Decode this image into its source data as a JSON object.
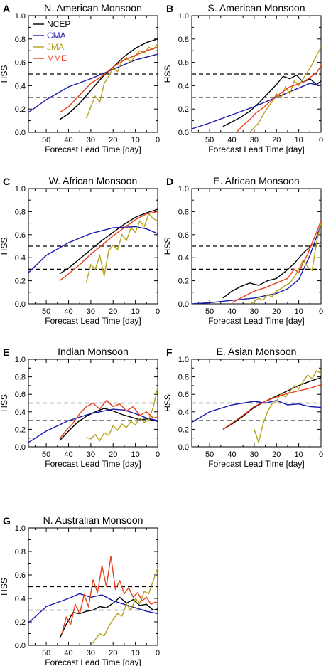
{
  "colors": {
    "NCEP": "#000000",
    "CMA": "#1a1aaa",
    "JMA": "#b5a21a",
    "MME": "#e8401a",
    "axis": "#000000"
  },
  "legend": [
    {
      "name": "NCEP",
      "color": "#000000"
    },
    {
      "name": "CMA",
      "color": "#1a1aaa"
    },
    {
      "name": "JMA",
      "color": "#b5a21a"
    },
    {
      "name": "MME",
      "color": "#e8401a"
    }
  ],
  "chart_data": [
    {
      "type": "line",
      "panel_label": "A",
      "title": "N. American Monsoon",
      "xlabel": "Forecast Lead Time [day]",
      "ylabel": "HSS",
      "xlim": [
        58,
        0
      ],
      "ylim": [
        0,
        1.0
      ],
      "x_ticks": [
        50,
        40,
        30,
        20,
        10,
        0
      ],
      "y_ticks": [
        "0.0",
        "0.2",
        "0.4",
        "0.6",
        "0.8",
        "1.0"
      ],
      "hlines": [
        0.3,
        0.5
      ],
      "legend_placement": "top-left",
      "series": [
        {
          "name": "NCEP",
          "x": [
            44,
            40,
            35,
            30,
            25,
            20,
            15,
            10,
            5,
            0
          ],
          "values": [
            0.11,
            0.16,
            0.25,
            0.36,
            0.47,
            0.56,
            0.65,
            0.72,
            0.77,
            0.8
          ]
        },
        {
          "name": "CMA",
          "x": [
            58,
            50,
            40,
            30,
            20,
            10,
            0
          ],
          "values": [
            0.17,
            0.28,
            0.39,
            0.46,
            0.54,
            0.62,
            0.67
          ]
        },
        {
          "name": "JMA",
          "x": [
            32,
            30,
            28,
            26,
            24,
            22,
            20,
            18,
            16,
            14,
            12,
            10,
            8,
            6,
            4,
            2,
            0
          ],
          "values": [
            0.12,
            0.22,
            0.31,
            0.26,
            0.42,
            0.48,
            0.55,
            0.52,
            0.61,
            0.64,
            0.6,
            0.66,
            0.7,
            0.68,
            0.73,
            0.71,
            0.76
          ]
        },
        {
          "name": "MME",
          "x": [
            44,
            40,
            35,
            30,
            25,
            20,
            15,
            10,
            5,
            0
          ],
          "values": [
            0.17,
            0.22,
            0.32,
            0.42,
            0.48,
            0.56,
            0.62,
            0.66,
            0.7,
            0.73
          ]
        }
      ]
    },
    {
      "type": "line",
      "panel_label": "B",
      "title": "S. American Monsoon",
      "xlabel": "Forecast Lead Time [day]",
      "ylabel": "HSS",
      "xlim": [
        58,
        0
      ],
      "ylim": [
        0,
        1.0
      ],
      "x_ticks": [
        50,
        40,
        30,
        20,
        10,
        0
      ],
      "y_ticks": [
        "0.0",
        "0.2",
        "0.4",
        "0.6",
        "0.8",
        "1.0"
      ],
      "hlines": [
        0.3,
        0.5
      ],
      "series": [
        {
          "name": "NCEP",
          "x": [
            44,
            40,
            36,
            32,
            28,
            24,
            20,
            17,
            14,
            11,
            8,
            5,
            2,
            0
          ],
          "values": [
            0.05,
            0.09,
            0.13,
            0.18,
            0.25,
            0.33,
            0.41,
            0.48,
            0.46,
            0.49,
            0.43,
            0.46,
            0.41,
            0.44
          ]
        },
        {
          "name": "CMA",
          "x": [
            58,
            50,
            40,
            30,
            20,
            10,
            5,
            0
          ],
          "values": [
            0.03,
            0.08,
            0.15,
            0.22,
            0.3,
            0.38,
            0.42,
            0.4
          ]
        },
        {
          "name": "JMA",
          "x": [
            32,
            30,
            28,
            26,
            24,
            22,
            20,
            18,
            16,
            14,
            12,
            10,
            8,
            6,
            4,
            2,
            0
          ],
          "values": [
            0.0,
            0.04,
            0.08,
            0.15,
            0.21,
            0.26,
            0.33,
            0.29,
            0.39,
            0.33,
            0.44,
            0.4,
            0.46,
            0.52,
            0.58,
            0.66,
            0.73
          ]
        },
        {
          "name": "MME",
          "x": [
            38,
            35,
            32,
            29,
            26,
            23,
            20,
            17,
            14,
            11,
            8,
            5,
            2,
            0
          ],
          "values": [
            0.0,
            0.06,
            0.11,
            0.17,
            0.21,
            0.26,
            0.31,
            0.35,
            0.39,
            0.41,
            0.43,
            0.47,
            0.51,
            0.57
          ]
        }
      ]
    },
    {
      "type": "line",
      "panel_label": "C",
      "title": "W. African Monsoon",
      "xlabel": "Forecast Lead Time [day]",
      "ylabel": "HSS",
      "xlim": [
        58,
        0
      ],
      "ylim": [
        0,
        1.0
      ],
      "x_ticks": [
        50,
        40,
        30,
        20,
        10,
        0
      ],
      "y_ticks": [
        "0.0",
        "0.2",
        "0.4",
        "0.6",
        "0.8",
        "1.0"
      ],
      "hlines": [
        0.3,
        0.5
      ],
      "series": [
        {
          "name": "NCEP",
          "x": [
            44,
            40,
            35,
            30,
            25,
            20,
            15,
            10,
            5,
            0
          ],
          "values": [
            0.26,
            0.31,
            0.39,
            0.47,
            0.55,
            0.62,
            0.69,
            0.75,
            0.79,
            0.82
          ]
        },
        {
          "name": "CMA",
          "x": [
            58,
            50,
            40,
            30,
            20,
            10,
            5,
            0
          ],
          "values": [
            0.27,
            0.42,
            0.53,
            0.61,
            0.66,
            0.67,
            0.65,
            0.61
          ]
        },
        {
          "name": "JMA",
          "x": [
            32,
            30,
            28,
            26,
            24,
            22,
            20,
            18,
            16,
            14,
            12,
            10,
            8,
            6,
            4,
            2,
            0
          ],
          "values": [
            0.19,
            0.34,
            0.3,
            0.42,
            0.24,
            0.46,
            0.51,
            0.47,
            0.6,
            0.55,
            0.66,
            0.62,
            0.72,
            0.67,
            0.78,
            0.74,
            0.72
          ]
        },
        {
          "name": "MME",
          "x": [
            44,
            40,
            35,
            30,
            25,
            20,
            15,
            10,
            5,
            0
          ],
          "values": [
            0.2,
            0.26,
            0.34,
            0.43,
            0.51,
            0.59,
            0.66,
            0.73,
            0.78,
            0.8
          ]
        }
      ]
    },
    {
      "type": "line",
      "panel_label": "D",
      "title": "E. African Monsoon",
      "xlabel": "Forecast Lead Time [day]",
      "ylabel": "HSS",
      "xlim": [
        58,
        0
      ],
      "ylim": [
        0,
        1.0
      ],
      "x_ticks": [
        50,
        40,
        30,
        20,
        10,
        0
      ],
      "y_ticks": [
        "0.0",
        "0.2",
        "0.4",
        "0.6",
        "0.8",
        "1.0"
      ],
      "hlines": [
        0.3,
        0.5
      ],
      "series": [
        {
          "name": "NCEP",
          "x": [
            44,
            40,
            36,
            32,
            28,
            24,
            20,
            16,
            12,
            8,
            4,
            0
          ],
          "values": [
            0.05,
            0.11,
            0.15,
            0.18,
            0.16,
            0.2,
            0.22,
            0.28,
            0.35,
            0.44,
            0.51,
            0.53
          ]
        },
        {
          "name": "CMA",
          "x": [
            58,
            50,
            40,
            30,
            20,
            15,
            10,
            5,
            0
          ],
          "values": [
            0.0,
            0.01,
            0.03,
            0.05,
            0.09,
            0.13,
            0.21,
            0.42,
            0.69
          ]
        },
        {
          "name": "JMA",
          "x": [
            32,
            30,
            28,
            26,
            24,
            22,
            20,
            18,
            16,
            14,
            12,
            10,
            8,
            6,
            4,
            2,
            0
          ],
          "values": [
            0.0,
            0.02,
            0.05,
            0.03,
            0.08,
            0.06,
            0.11,
            0.13,
            0.16,
            0.18,
            0.23,
            0.3,
            0.38,
            0.32,
            0.29,
            0.53,
            0.7
          ]
        },
        {
          "name": "MME",
          "x": [
            40,
            35,
            30,
            25,
            20,
            15,
            12,
            10,
            8,
            6,
            4,
            2,
            0
          ],
          "values": [
            0.01,
            0.06,
            0.11,
            0.14,
            0.18,
            0.22,
            0.3,
            0.27,
            0.36,
            0.43,
            0.53,
            0.62,
            0.72
          ]
        }
      ]
    },
    {
      "type": "line",
      "panel_label": "E",
      "title": "Indian Monsoon",
      "xlabel": "Forecast Lead Time [day]",
      "ylabel": "HSS",
      "xlim": [
        58,
        0
      ],
      "ylim": [
        0,
        1.0
      ],
      "x_ticks": [
        50,
        40,
        30,
        20,
        10,
        0
      ],
      "y_ticks": [
        "0.0",
        "0.2",
        "0.4",
        "0.6",
        "0.8",
        "1.0"
      ],
      "hlines": [
        0.3,
        0.5
      ],
      "series": [
        {
          "name": "NCEP",
          "x": [
            44,
            40,
            36,
            32,
            28,
            24,
            20,
            16,
            12,
            8,
            4,
            0
          ],
          "values": [
            0.07,
            0.18,
            0.28,
            0.35,
            0.4,
            0.44,
            0.41,
            0.37,
            0.34,
            0.31,
            0.32,
            0.29
          ]
        },
        {
          "name": "CMA",
          "x": [
            58,
            50,
            40,
            30,
            20,
            15,
            10,
            5,
            0
          ],
          "values": [
            0.05,
            0.18,
            0.3,
            0.38,
            0.43,
            0.42,
            0.38,
            0.33,
            0.3
          ]
        },
        {
          "name": "JMA",
          "x": [
            32,
            30,
            28,
            26,
            24,
            22,
            20,
            18,
            16,
            14,
            12,
            10,
            8,
            6,
            4,
            2,
            0
          ],
          "values": [
            0.11,
            0.09,
            0.14,
            0.07,
            0.16,
            0.13,
            0.24,
            0.19,
            0.26,
            0.22,
            0.29,
            0.25,
            0.33,
            0.28,
            0.31,
            0.45,
            0.68
          ]
        },
        {
          "name": "MME",
          "x": [
            44,
            41,
            38,
            35,
            32,
            29,
            26,
            23,
            20,
            17,
            14,
            11,
            8,
            5,
            2,
            0
          ],
          "values": [
            0.09,
            0.19,
            0.27,
            0.38,
            0.46,
            0.5,
            0.43,
            0.53,
            0.46,
            0.49,
            0.41,
            0.46,
            0.36,
            0.4,
            0.33,
            0.34
          ]
        }
      ]
    },
    {
      "type": "line",
      "panel_label": "F",
      "title": "E. Asian Monsoon",
      "xlabel": "Forecast Lead Time [day]",
      "ylabel": "HSS",
      "xlim": [
        58,
        0
      ],
      "ylim": [
        0,
        1.0
      ],
      "x_ticks": [
        50,
        40,
        30,
        20,
        10,
        0
      ],
      "y_ticks": [
        "0.0",
        "0.2",
        "0.4",
        "0.6",
        "0.8",
        "1.0"
      ],
      "hlines": [
        0.3,
        0.5
      ],
      "series": [
        {
          "name": "NCEP",
          "x": [
            44,
            40,
            35,
            30,
            25,
            20,
            15,
            10,
            5,
            0
          ],
          "values": [
            0.2,
            0.26,
            0.35,
            0.45,
            0.52,
            0.58,
            0.64,
            0.7,
            0.75,
            0.79
          ]
        },
        {
          "name": "CMA",
          "x": [
            58,
            50,
            40,
            30,
            25,
            20,
            15,
            10,
            5,
            0
          ],
          "values": [
            0.28,
            0.4,
            0.48,
            0.52,
            0.5,
            0.53,
            0.48,
            0.49,
            0.46,
            0.45
          ]
        },
        {
          "name": "JMA",
          "x": [
            30,
            28,
            26,
            24,
            22,
            20,
            18,
            16,
            14,
            12,
            10,
            8,
            6,
            4,
            2,
            0
          ],
          "values": [
            0.2,
            0.05,
            0.26,
            0.4,
            0.49,
            0.52,
            0.61,
            0.57,
            0.63,
            0.7,
            0.66,
            0.75,
            0.82,
            0.78,
            0.87,
            0.84
          ]
        },
        {
          "name": "MME",
          "x": [
            44,
            40,
            35,
            30,
            25,
            20,
            15,
            10,
            5,
            0
          ],
          "values": [
            0.2,
            0.27,
            0.36,
            0.46,
            0.52,
            0.57,
            0.61,
            0.64,
            0.67,
            0.71
          ]
        }
      ]
    },
    {
      "type": "line",
      "panel_label": "G",
      "title": "N. Australian Monsoon",
      "xlabel": "Forecast Lead Time [day]",
      "ylabel": "HSS",
      "xlim": [
        58,
        0
      ],
      "ylim": [
        0,
        1.0
      ],
      "x_ticks": [
        50,
        40,
        30,
        20,
        10,
        0
      ],
      "y_ticks": [
        "0.0",
        "0.2",
        "0.4",
        "0.6",
        "0.8",
        "1.0"
      ],
      "hlines": [
        0.3,
        0.5
      ],
      "series": [
        {
          "name": "NCEP",
          "x": [
            44,
            41,
            38,
            35,
            32,
            29,
            26,
            23,
            20,
            17,
            14,
            11,
            8,
            5,
            2,
            0
          ],
          "values": [
            0.06,
            0.18,
            0.28,
            0.27,
            0.29,
            0.3,
            0.33,
            0.32,
            0.36,
            0.41,
            0.36,
            0.39,
            0.34,
            0.35,
            0.3,
            0.31
          ]
        },
        {
          "name": "CMA",
          "x": [
            58,
            50,
            40,
            35,
            30,
            25,
            20,
            15,
            10,
            5,
            0
          ],
          "values": [
            0.19,
            0.33,
            0.4,
            0.44,
            0.41,
            0.43,
            0.38,
            0.35,
            0.32,
            0.29,
            0.27
          ]
        },
        {
          "name": "JMA",
          "x": [
            30,
            28,
            26,
            24,
            22,
            20,
            18,
            16,
            14,
            12,
            10,
            8,
            6,
            4,
            2,
            0
          ],
          "values": [
            0.0,
            0.05,
            0.1,
            0.08,
            0.16,
            0.22,
            0.27,
            0.25,
            0.35,
            0.3,
            0.4,
            0.36,
            0.46,
            0.44,
            0.55,
            0.66
          ]
        },
        {
          "name": "MME",
          "x": [
            43,
            41,
            39,
            37,
            35,
            33,
            31,
            29,
            27,
            25,
            23,
            21,
            19,
            17,
            15,
            13,
            11,
            9,
            7,
            5,
            3,
            1,
            0
          ],
          "values": [
            0.1,
            0.24,
            0.18,
            0.35,
            0.27,
            0.43,
            0.33,
            0.56,
            0.45,
            0.68,
            0.5,
            0.76,
            0.48,
            0.55,
            0.44,
            0.49,
            0.41,
            0.45,
            0.38,
            0.41,
            0.35,
            0.37,
            0.36
          ]
        }
      ]
    }
  ]
}
